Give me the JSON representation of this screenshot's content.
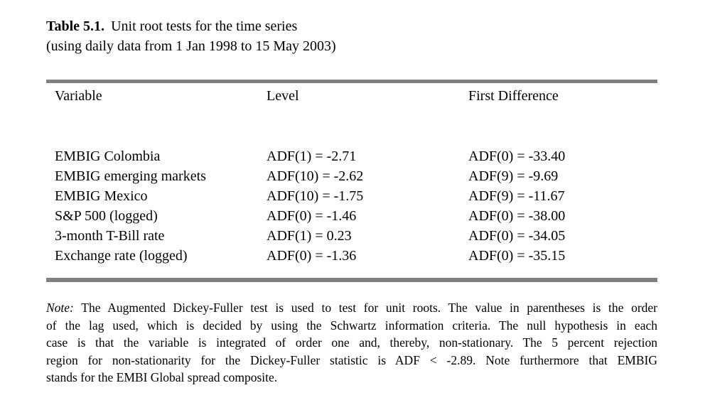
{
  "page": {
    "background_color": "#ffffff",
    "text_color": "#000000",
    "rule_color": "#808080"
  },
  "title": {
    "label": "Table 5.1.",
    "text": "Unit root tests for the time series",
    "subtitle": "(using daily data from 1 Jan 1998 to 15 May 2003)"
  },
  "table": {
    "columns": [
      "Variable",
      "Level",
      "First Difference"
    ],
    "rows": [
      {
        "variable": "EMBIG Colombia",
        "level": "ADF(1) = -2.71",
        "first_difference": "ADF(0) = -33.40"
      },
      {
        "variable": "EMBIG emerging markets",
        "level": "ADF(10) = -2.62",
        "first_difference": "ADF(9) = -9.69"
      },
      {
        "variable": "EMBIG Mexico",
        "level": "ADF(10) = -1.75",
        "first_difference": "ADF(9) = -11.67"
      },
      {
        "variable": "S&P 500 (logged)",
        "level": "ADF(0) = -1.46",
        "first_difference": "ADF(0) = -38.00"
      },
      {
        "variable": "3-month T-Bill rate",
        "level": "ADF(1) = 0.23",
        "first_difference": "ADF(0) = -34.05"
      },
      {
        "variable": "Exchange rate (logged)",
        "level": "ADF(0) = -1.36",
        "first_difference": "ADF(0) = -35.15"
      }
    ]
  },
  "note": {
    "label": "Note:",
    "lines": [
      "The Augmented Dickey-Fuller test is used to test for unit roots.  The value in parentheses is the order",
      "of the lag used, which is decided by using the Schwartz information criteria.  The null hypothesis in each",
      "case is that the variable is integrated of order one and, thereby, non-stationary.  The 5 percent rejection",
      "region for non-stationarity for the Dickey-Fuller statistic is ADF < -2.89.  Note furthermore that EMBIG",
      "stands for the EMBI Global spread composite."
    ]
  }
}
